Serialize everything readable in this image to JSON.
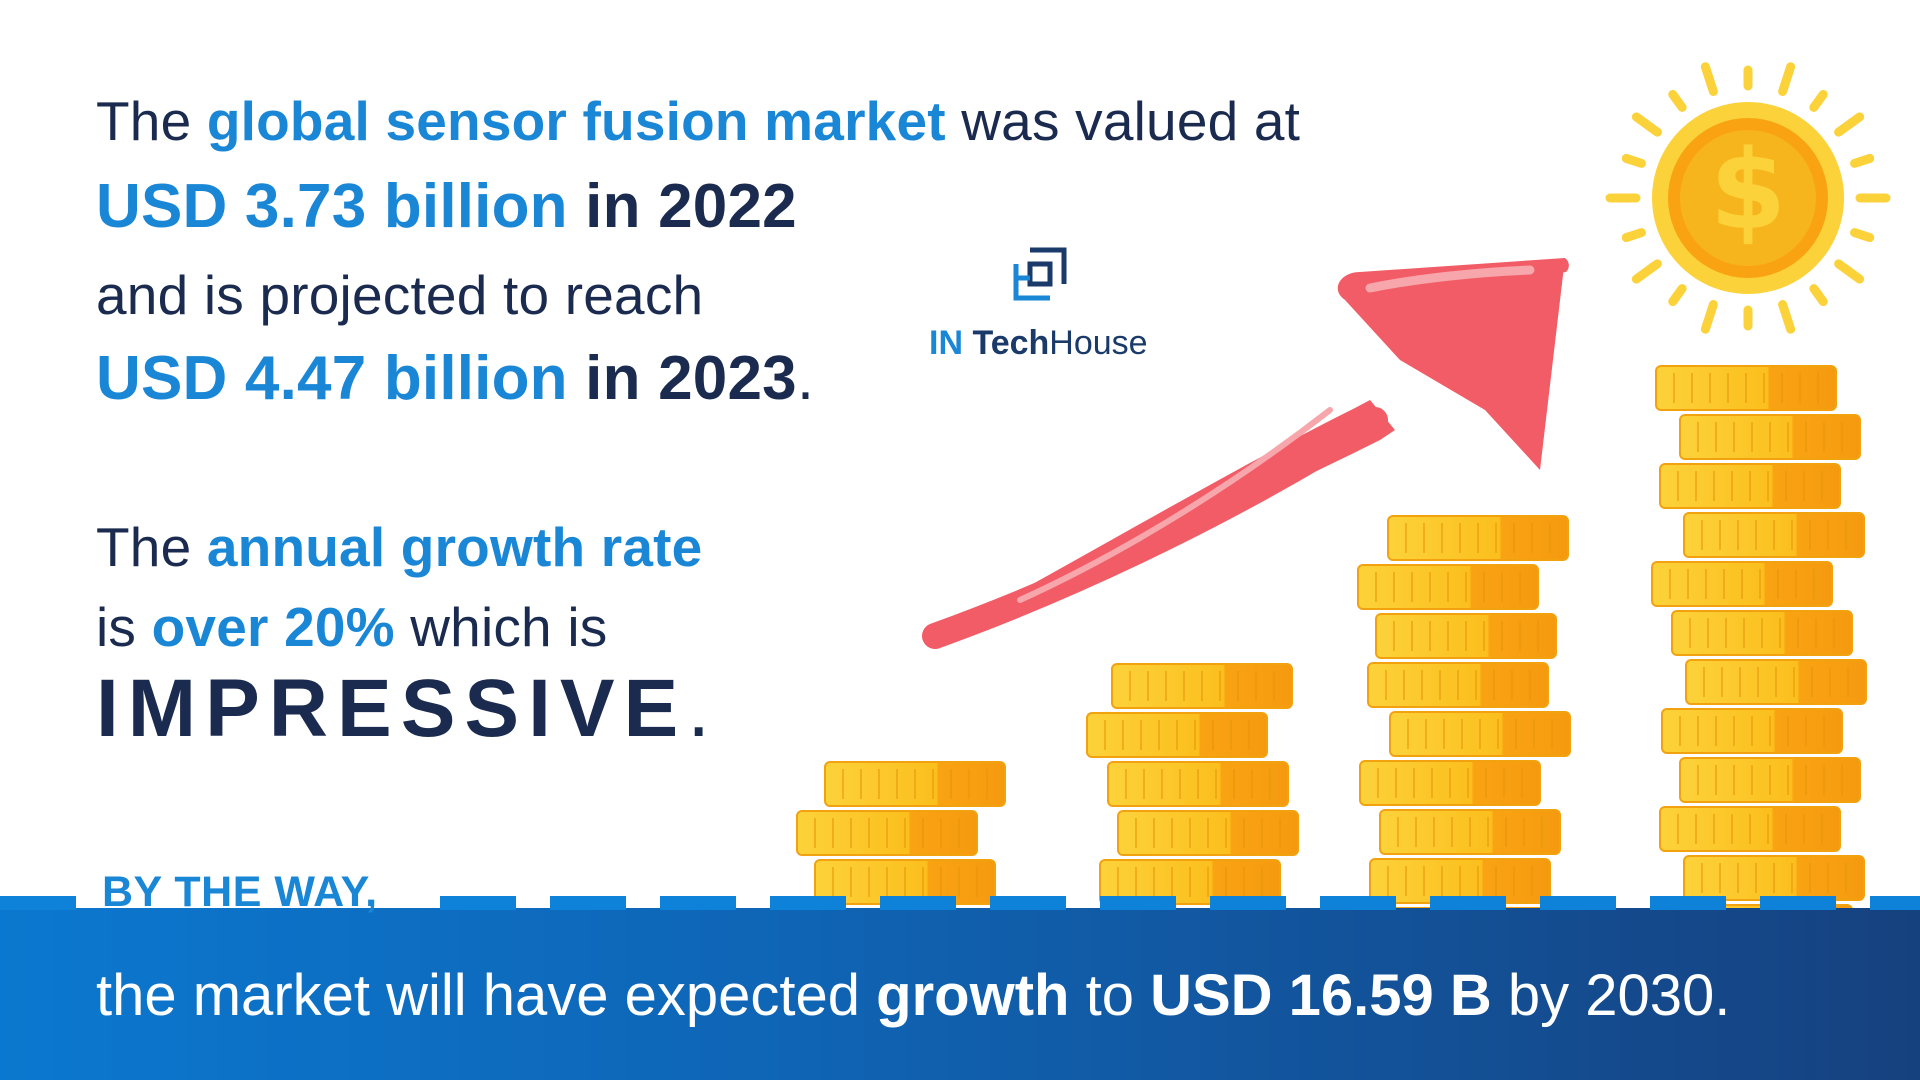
{
  "headline": {
    "l1_a": "The ",
    "l1_b": "global sensor fusion market",
    "l1_c": " was valued at",
    "l2_a": "USD 3.73 billion",
    "l2_b": " in 2022",
    "l3": "and is projected to reach",
    "l4_a": "USD 4.47 billion",
    "l4_b": " in 2023",
    "l4_c": "."
  },
  "growth": {
    "l5_a": "The ",
    "l5_b": "annual growth rate",
    "l6_a": "is ",
    "l6_b": "over 20%",
    "l6_c": " which is",
    "l7_a": "IMPRESSIVE",
    "l7_b": "."
  },
  "logo": {
    "in": "IN",
    "tech": "Tech",
    "house": "House"
  },
  "footer": {
    "by_the_way": "BY THE WAY,",
    "a": "the market will have expected ",
    "b": "growth",
    "c": "  to ",
    "d": "USD 16.59 B",
    "e": " by 2030."
  },
  "colors": {
    "accent": "#1a86d6",
    "text_dark": "#1b2b4f",
    "arrow": "#f25c66",
    "coin": "#fbbf1d",
    "band_start": "#0b78cf",
    "band_end": "#16417f"
  },
  "icons": [
    "dollar-sun-icon",
    "rising-arrow-icon",
    "coin-stack-icon",
    "logo-mark-icon"
  ]
}
